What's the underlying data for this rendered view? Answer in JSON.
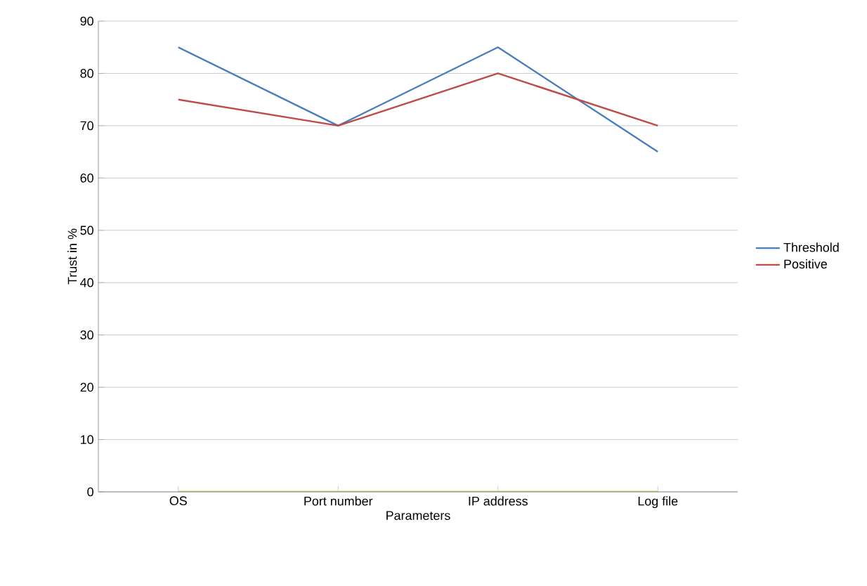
{
  "chart_data": {
    "type": "line",
    "xlabel": "Parameters",
    "ylabel": "Trust in %",
    "categories": [
      "OS",
      "Port number",
      "IP address",
      "Log file"
    ],
    "series": [
      {
        "name": "Threshold",
        "color": "#4a7ebb",
        "values": [
          85,
          70,
          85,
          65
        ]
      },
      {
        "name": "Positive",
        "color": "#be4b48",
        "values": [
          75,
          70,
          80,
          70
        ]
      },
      {
        "color": "#98b954",
        "values": [
          0,
          0,
          0,
          0
        ]
      }
    ],
    "ylim": [
      0,
      90
    ],
    "yticks": [
      0,
      10,
      20,
      30,
      40,
      50,
      60,
      70,
      80,
      90
    ],
    "grid": "y",
    "legend": "right"
  }
}
